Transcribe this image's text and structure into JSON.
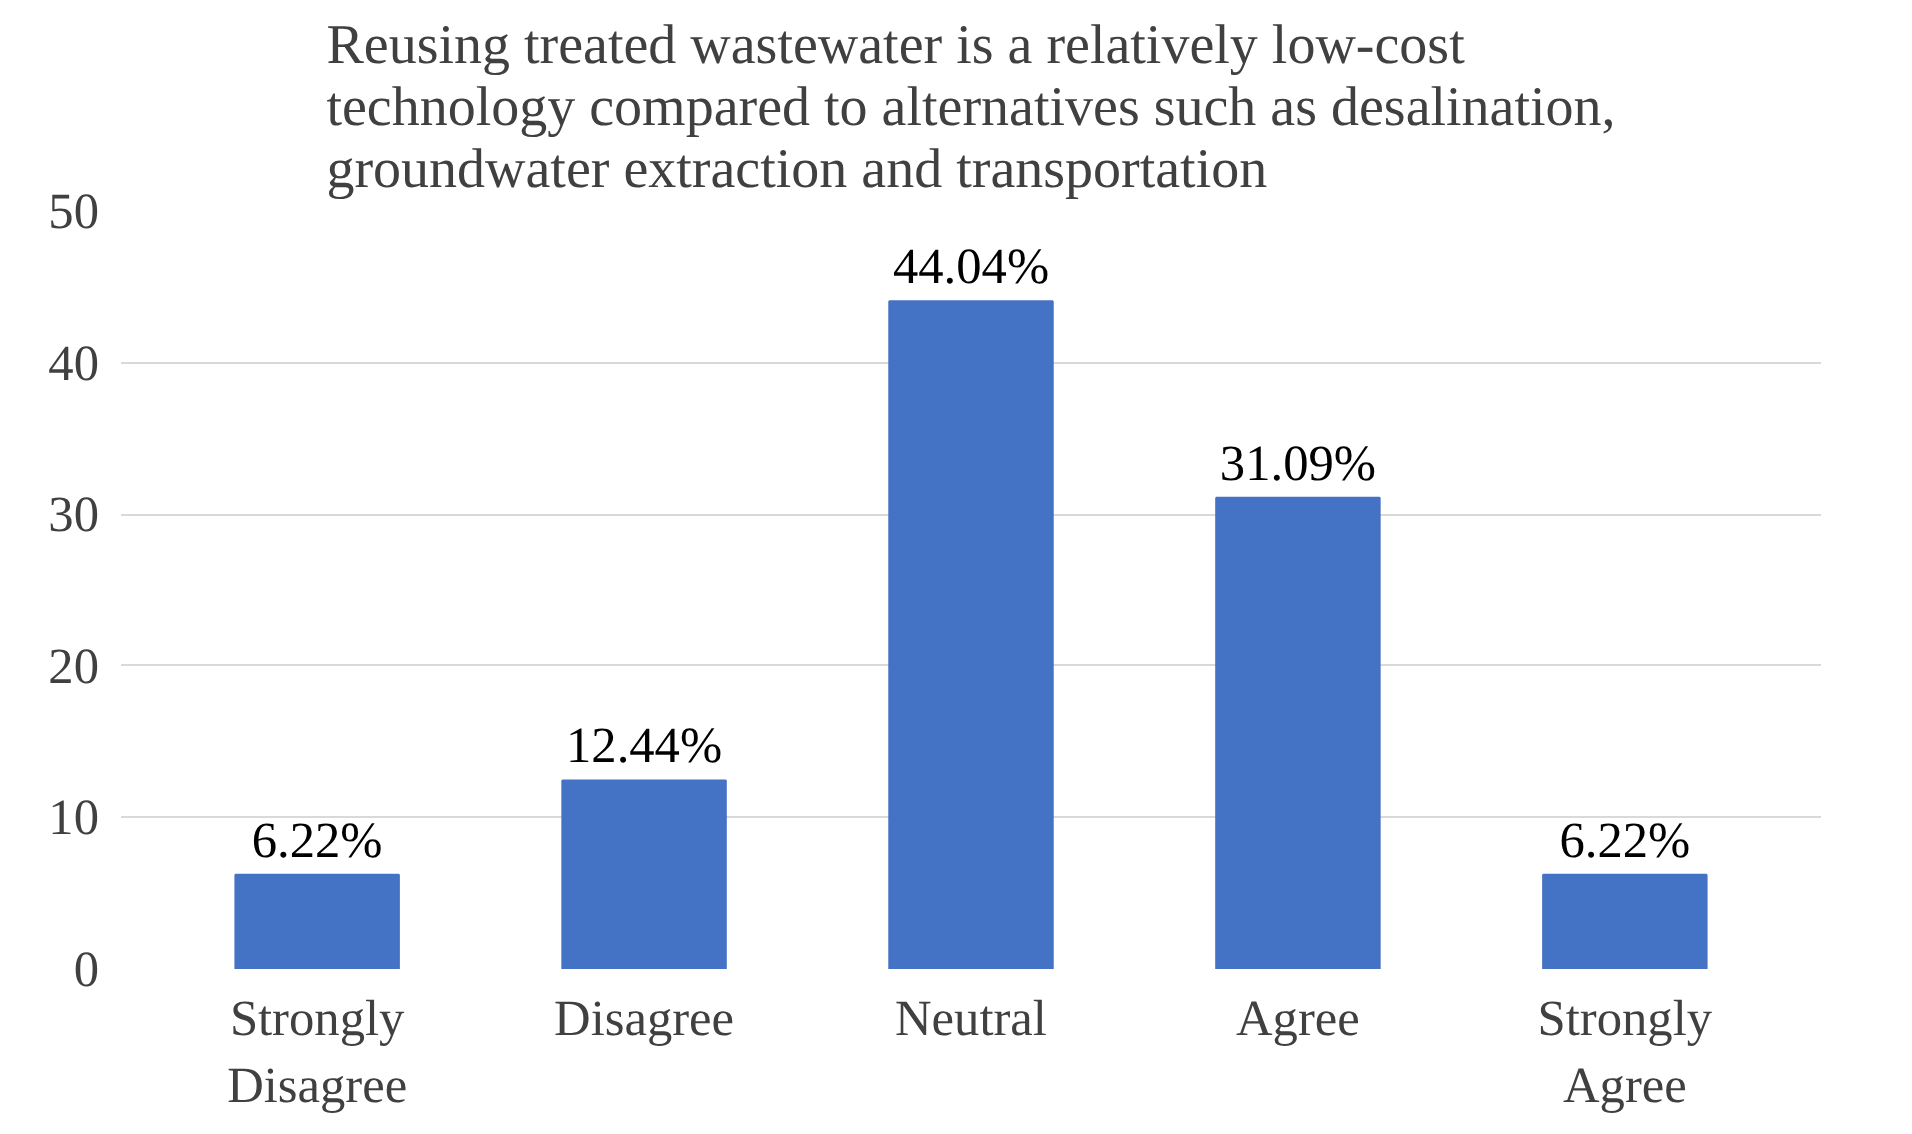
{
  "chart_data": {
    "type": "bar",
    "title": "Reusing treated wastewater is a relatively low-cost technology compared to alternatives such as desalination, groundwater extraction and transportation",
    "categories": [
      "Strongly Disagree",
      "Disagree",
      "Neutral",
      "Agree",
      "Strongly Agree"
    ],
    "values": [
      6.22,
      12.44,
      44.04,
      31.09,
      6.22
    ],
    "value_labels": [
      "6.22%",
      "12.44%",
      "44.04%",
      "31.09%",
      "6.22%"
    ],
    "color": "#4472c4",
    "ylim": [
      0,
      50
    ],
    "yticks": [
      0,
      10,
      20,
      30,
      40,
      50
    ],
    "grid": "y"
  }
}
